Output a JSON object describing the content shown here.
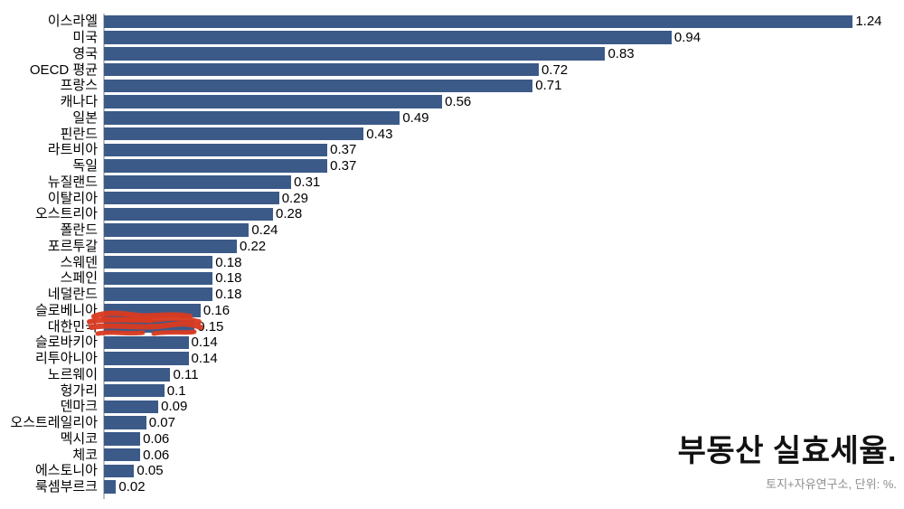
{
  "page": {
    "background": "#ffffff"
  },
  "chart_data": {
    "type": "bar",
    "orientation": "horizontal",
    "title": "부동산 실효세율.",
    "source_note": "토지+자유연구소, 단위: %.",
    "unit": "%",
    "categories": [
      "이스라엘",
      "미국",
      "영국",
      "OECD 평균",
      "프랑스",
      "캐나다",
      "일본",
      "핀란드",
      "라트비아",
      "독일",
      "뉴질랜드",
      "이탈리아",
      "오스트리아",
      "폴란드",
      "포르투갈",
      "스웨덴",
      "스페인",
      "네덜란드",
      "슬로베니아",
      "대한민국",
      "슬로바키아",
      "리투아니아",
      "노르웨이",
      "헝가리",
      "덴마크",
      "오스트레일리아",
      "멕시코",
      "체코",
      "에스토니아",
      "룩셈부르크"
    ],
    "values": [
      1.24,
      0.94,
      0.83,
      0.72,
      0.71,
      0.56,
      0.49,
      0.43,
      0.37,
      0.37,
      0.31,
      0.29,
      0.28,
      0.24,
      0.22,
      0.18,
      0.18,
      0.18,
      0.16,
      0.15,
      0.14,
      0.14,
      0.11,
      0.1,
      0.09,
      0.07,
      0.06,
      0.06,
      0.05,
      0.02
    ],
    "value_labels": [
      "1.24",
      "0.94",
      "0.83",
      "0.72",
      "0.71",
      "0.56",
      "0.49",
      "0.43",
      "0.37",
      "0.37",
      "0.31",
      "0.29",
      "0.28",
      "0.24",
      "0.22",
      "0.18",
      "0.18",
      "0.18",
      "0.16",
      "0.15",
      "0.14",
      "0.14",
      "0.11",
      "0.1",
      "0.09",
      "0.07",
      "0.06",
      "0.06",
      "0.05",
      "0.02"
    ],
    "xlim": [
      0,
      1.3
    ],
    "grid": false,
    "legend": "none",
    "bar_color": "#3c5a88",
    "highlight": {
      "category": "대한민국",
      "index": 19,
      "annotation": "red-marker-scribble",
      "color": "#d93b21"
    }
  }
}
